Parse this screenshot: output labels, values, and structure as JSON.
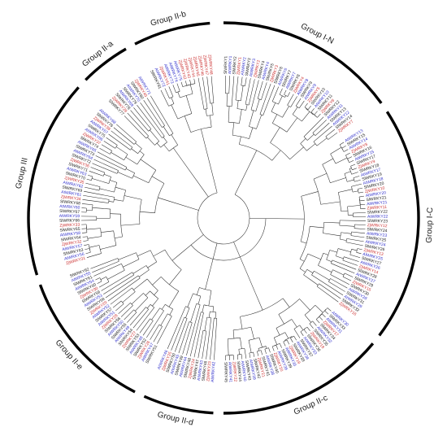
{
  "figure": {
    "colors": {
      "sl": "#1a1a1a",
      "at": "#3333cc",
      "zj": "#cc3333",
      "band": "#000000",
      "branch": "#2a2a2a"
    }
  },
  "groups": [
    {
      "label": "Group I-N",
      "start": 0,
      "end": 54
    },
    {
      "label": "Group I-C",
      "start": 57,
      "end": 127
    },
    {
      "label": "Group II-c",
      "start": 130,
      "end": 180
    },
    {
      "label": "Group II-d",
      "start": 183,
      "end": 204
    },
    {
      "label": "Group II-e",
      "start": 207,
      "end": 250
    },
    {
      "label": "Group III",
      "start": 253,
      "end": 312
    },
    {
      "label": "Group II-a",
      "start": 315,
      "end": 330
    },
    {
      "label": "Group II-b",
      "start": 333,
      "end": 356
    }
  ],
  "leaves": {
    "sl": [
      "SlWRKY1",
      "SlWRKY2",
      "SlWRKY3",
      "SlWRKY4",
      "SlWRKY5",
      "SlWRKY6",
      "SlWRKY7",
      "SlWRKY8",
      "SlWRKY9",
      "SlWRKY10",
      "SlWRKY11",
      "SlWRKY12",
      "SlWRKY13",
      "SlWRKY14",
      "SlWRKY15",
      "SlWRKY16",
      "SlWRKY17",
      "SlWRKY18",
      "SlWRKY19",
      "SlWRKY20",
      "SlWRKY21",
      "SlWRKY22",
      "SlWRKY23",
      "SlWRKY24",
      "SlWRKY25",
      "SlWRKY26",
      "SlWRKY27",
      "SlWRKY28",
      "SlWRKY29",
      "SlWRKY30",
      "SlWRKY31",
      "SlWRKY32",
      "SlWRKY33",
      "SlWRKY34",
      "SlWRKY35",
      "SlWRKY36",
      "SlWRKY37",
      "SlWRKY38",
      "SlWRKY39",
      "SlWRKY40",
      "SlWRKY41",
      "SlWRKY42",
      "SlWRKY43",
      "SlWRKY44",
      "SlWRKY45",
      "SlWRKY46",
      "SlWRKY47",
      "SlWRKY48",
      "SlWRKY49",
      "SlWRKY50",
      "SlWRKY51",
      "SlWRKY52",
      "SlWRKY53",
      "SlWRKY54",
      "SlWRKY55",
      "SlWRKY56",
      "SlWRKY57",
      "SlWRKY58",
      "SlWRKY59",
      "SlWRKY60",
      "SlWRKY61",
      "SlWRKY62",
      "SlWRKY63",
      "SlWRKY64",
      "SlWRKY65",
      "SlWRKY66",
      "SlWRKY67",
      "SlWRKY68",
      "SlWRKY69",
      "SlWRKY70",
      "SlWRKY71",
      "SlWRKY72",
      "SlWRKY73",
      "SlWRKY74",
      "SlWRKY75",
      "SlWRKY76",
      "SlWRKY77",
      "SlWRKY78",
      "SlWRKY79",
      "SlWRKY80",
      "SlWRKY81"
    ],
    "at": [
      "AtWRKY1",
      "AtWRKY2",
      "AtWRKY3",
      "AtWRKY4",
      "AtWRKY6",
      "AtWRKY7",
      "AtWRKY8",
      "AtWRKY9",
      "AtWRKY10",
      "AtWRKY11",
      "AtWRKY12",
      "AtWRKY13",
      "AtWRKY14",
      "AtWRKY15",
      "AtWRKY17",
      "AtWRKY18",
      "AtWRKY20",
      "AtWRKY21",
      "AtWRKY22",
      "AtWRKY23",
      "AtWRKY24",
      "AtWRKY25",
      "AtWRKY26",
      "AtWRKY27",
      "AtWRKY28",
      "AtWRKY29",
      "AtWRKY30",
      "AtWRKY31",
      "AtWRKY32",
      "AtWRKY33",
      "AtWRKY34",
      "AtWRKY35",
      "AtWRKY36",
      "AtWRKY38",
      "AtWRKY39",
      "AtWRKY40",
      "AtWRKY41",
      "AtWRKY42",
      "AtWRKY43",
      "AtWRKY44",
      "AtWRKY45",
      "AtWRKY46",
      "AtWRKY47",
      "AtWRKY48",
      "AtWRKY49",
      "AtWRKY50",
      "AtWRKY51",
      "AtWRKY52",
      "AtWRKY53",
      "AtWRKY54",
      "AtWRKY55",
      "AtWRKY56",
      "AtWRKY57",
      "AtWRKY58",
      "AtWRKY59",
      "AtWRKY60",
      "AtWRKY61",
      "AtWRKY62",
      "AtWRKY63",
      "AtWRKY64",
      "AtWRKY65",
      "AtWRKY66",
      "AtWRKY67",
      "AtWRKY68",
      "AtWRKY69",
      "AtWRKY70",
      "AtWRKY71",
      "AtWRKY72",
      "AtWRKY73",
      "AtWRKY74",
      "AtWRKY75"
    ],
    "zj": [
      "ZjWRKY1",
      "ZjWRKY2",
      "ZjWRKY3",
      "ZjWRKY4",
      "ZjWRKY5",
      "ZjWRKY6",
      "ZjWRKY7",
      "ZjWRKY8",
      "ZjWRKY9",
      "ZjWRKY10",
      "ZjWRKY11",
      "ZjWRKY12",
      "ZjWRKY13",
      "ZjWRKY14",
      "ZjWRKY15",
      "ZjWRKY16",
      "ZjWRKY17",
      "ZjWRKY18",
      "ZjWRKY19",
      "ZjWRKY20",
      "ZjWRKY21",
      "ZjWRKY22",
      "ZjWRKY23",
      "ZjWRKY24",
      "ZjWRKY25",
      "ZjWRKY26",
      "ZjWRKY27",
      "ZjWRKY28",
      "ZjWRKY29",
      "ZjWRKY30",
      "ZjWRKY31",
      "ZjWRKY32",
      "ZjWRKY33",
      "ZjWRKY34",
      "ZjWRKY35",
      "ZjWRKY36",
      "ZjWRKY37",
      "ZjWRKY38",
      "ZjWRKY39",
      "ZjWRKY40",
      "ZjWRKY41",
      "ZjWRKY42",
      "ZjWRKY43",
      "ZjWRKY44",
      "ZjWRKY45",
      "ZjWRKY46",
      "ZjWRKY47",
      "ZjWRKY48"
    ]
  }
}
